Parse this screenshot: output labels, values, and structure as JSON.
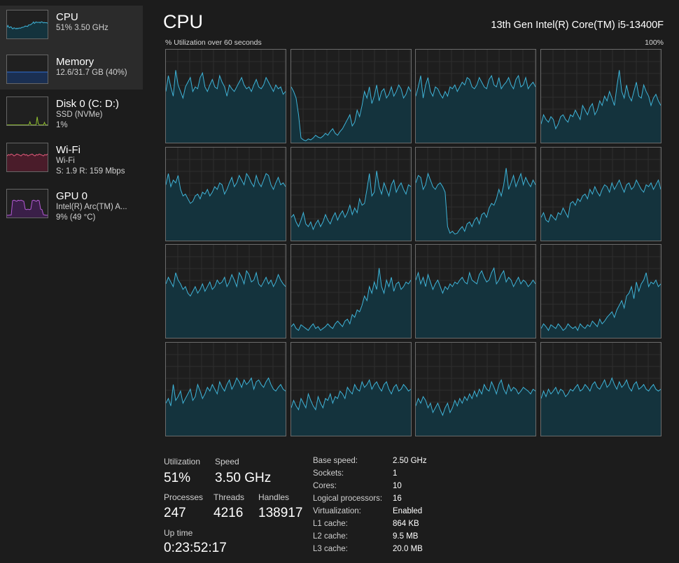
{
  "sidebar": {
    "items": [
      {
        "title": "CPU",
        "sub1": "51%  3.50 GHz",
        "sub2": ""
      },
      {
        "title": "Memory",
        "sub1": "12.6/31.7 GB (40%)",
        "sub2": ""
      },
      {
        "title": "Disk 0 (C: D:)",
        "sub1": "SSD (NVMe)",
        "sub2": "1%"
      },
      {
        "title": "Wi-Fi",
        "sub1": "Wi-Fi",
        "sub2": "S: 1.9  R: 159 Mbps"
      },
      {
        "title": "GPU 0",
        "sub1": "Intel(R) Arc(TM) A...",
        "sub2": "9%  (49 °C)"
      }
    ]
  },
  "header": {
    "title": "CPU",
    "model": "13th Gen Intel(R) Core(TM) i5-13400F",
    "util_label": "% Utilization over 60 seconds",
    "util_max": "100%"
  },
  "cores": [
    [
      55,
      72,
      60,
      50,
      78,
      62,
      55,
      48,
      60,
      65,
      70,
      55,
      60,
      58,
      70,
      75,
      60,
      55,
      62,
      68,
      60,
      58,
      72,
      65,
      60,
      50,
      62,
      58,
      55,
      60,
      65,
      70,
      62,
      58,
      60,
      55,
      62,
      68,
      60,
      58,
      62,
      70,
      65,
      60,
      55,
      62,
      58,
      60,
      52,
      55
    ],
    [
      60,
      55,
      48,
      30,
      5,
      3,
      2,
      4,
      3,
      5,
      8,
      6,
      5,
      7,
      10,
      8,
      12,
      15,
      10,
      8,
      12,
      15,
      20,
      25,
      30,
      18,
      22,
      35,
      28,
      40,
      55,
      48,
      60,
      42,
      50,
      62,
      45,
      55,
      58,
      48,
      52,
      60,
      50,
      55,
      62,
      58,
      48,
      52,
      60,
      55
    ],
    [
      50,
      60,
      72,
      48,
      62,
      70,
      55,
      50,
      60,
      58,
      52,
      48,
      55,
      50,
      60,
      58,
      62,
      55,
      60,
      65,
      62,
      70,
      68,
      60,
      58,
      62,
      70,
      65,
      60,
      58,
      68,
      72,
      62,
      60,
      70,
      58,
      62,
      65,
      70,
      62,
      58,
      68,
      72,
      60,
      62,
      70,
      58,
      62,
      65,
      60
    ],
    [
      20,
      30,
      25,
      22,
      28,
      25,
      15,
      20,
      28,
      30,
      25,
      22,
      30,
      28,
      35,
      30,
      25,
      40,
      35,
      30,
      38,
      42,
      30,
      35,
      45,
      40,
      50,
      45,
      55,
      48,
      40,
      60,
      78,
      55,
      48,
      62,
      50,
      45,
      55,
      65,
      50,
      48,
      62,
      55,
      50,
      40,
      48,
      52,
      45,
      40
    ],
    [
      60,
      72,
      58,
      65,
      62,
      70,
      55,
      48,
      50,
      45,
      40,
      42,
      48,
      50,
      45,
      52,
      50,
      55,
      48,
      52,
      58,
      55,
      62,
      60,
      50,
      55,
      62,
      68,
      58,
      62,
      70,
      65,
      60,
      72,
      68,
      62,
      58,
      70,
      62,
      58,
      65,
      72,
      70,
      60,
      55,
      62,
      68,
      60,
      62,
      58
    ],
    [
      25,
      28,
      20,
      15,
      22,
      30,
      18,
      15,
      20,
      12,
      18,
      22,
      15,
      20,
      28,
      22,
      18,
      25,
      30,
      22,
      28,
      32,
      25,
      30,
      38,
      28,
      35,
      30,
      45,
      38,
      40,
      55,
      72,
      48,
      52,
      75,
      58,
      50,
      62,
      55,
      48,
      60,
      65,
      52,
      58,
      62,
      55,
      50,
      60,
      58
    ],
    [
      62,
      70,
      68,
      55,
      60,
      72,
      65,
      58,
      55,
      60,
      62,
      58,
      52,
      15,
      8,
      10,
      7,
      8,
      12,
      15,
      10,
      18,
      20,
      15,
      22,
      25,
      18,
      28,
      30,
      25,
      35,
      40,
      38,
      45,
      55,
      48,
      60,
      78,
      55,
      62,
      70,
      58,
      65,
      72,
      60,
      68,
      62,
      58,
      65,
      60
    ],
    [
      25,
      30,
      22,
      20,
      28,
      25,
      22,
      30,
      28,
      35,
      30,
      25,
      40,
      42,
      38,
      45,
      42,
      48,
      50,
      45,
      55,
      50,
      58,
      52,
      48,
      55,
      60,
      58,
      52,
      62,
      55,
      60,
      65,
      58,
      52,
      60,
      62,
      55,
      58,
      65,
      60,
      55,
      52,
      60,
      58,
      62,
      55,
      60,
      65,
      55
    ],
    [
      58,
      65,
      60,
      55,
      70,
      62,
      58,
      52,
      55,
      48,
      45,
      50,
      55,
      48,
      52,
      58,
      50,
      55,
      60,
      52,
      55,
      62,
      58,
      60,
      65,
      55,
      60,
      68,
      62,
      55,
      70,
      65,
      58,
      72,
      68,
      60,
      62,
      70,
      58,
      55,
      60,
      65,
      58,
      62,
      55,
      60,
      68,
      62,
      58,
      55
    ],
    [
      12,
      15,
      10,
      8,
      14,
      12,
      10,
      8,
      12,
      15,
      10,
      12,
      8,
      10,
      12,
      15,
      12,
      10,
      15,
      18,
      15,
      12,
      18,
      20,
      15,
      25,
      22,
      30,
      28,
      35,
      45,
      40,
      55,
      48,
      60,
      52,
      75,
      55,
      48,
      62,
      55,
      65,
      50,
      58,
      60,
      52,
      55,
      60,
      58,
      62
    ],
    [
      62,
      70,
      58,
      65,
      55,
      68,
      60,
      52,
      58,
      62,
      55,
      48,
      55,
      52,
      58,
      55,
      60,
      58,
      62,
      65,
      60,
      58,
      70,
      62,
      60,
      58,
      68,
      72,
      65,
      60,
      62,
      70,
      75,
      58,
      62,
      68,
      72,
      60,
      65,
      62,
      55,
      60,
      65,
      58,
      62,
      60,
      55,
      58,
      62,
      58
    ],
    [
      10,
      15,
      12,
      8,
      14,
      12,
      10,
      15,
      12,
      8,
      10,
      15,
      12,
      10,
      12,
      8,
      15,
      12,
      10,
      14,
      12,
      18,
      15,
      12,
      20,
      15,
      18,
      22,
      25,
      28,
      22,
      30,
      35,
      40,
      32,
      45,
      48,
      55,
      42,
      60,
      50,
      58,
      62,
      70,
      55,
      60,
      58,
      62,
      55,
      58
    ],
    [
      35,
      40,
      32,
      55,
      38,
      42,
      48,
      35,
      40,
      45,
      50,
      38,
      42,
      55,
      48,
      40,
      45,
      52,
      48,
      55,
      50,
      45,
      58,
      52,
      48,
      55,
      60,
      50,
      55,
      62,
      58,
      52,
      60,
      55,
      58,
      62,
      50,
      58,
      60,
      55,
      52,
      58,
      62,
      55,
      50,
      48,
      52,
      55,
      50,
      48
    ],
    [
      30,
      38,
      32,
      28,
      40,
      35,
      30,
      45,
      38,
      32,
      28,
      42,
      35,
      30,
      40,
      38,
      45,
      35,
      42,
      40,
      48,
      45,
      40,
      52,
      48,
      45,
      55,
      50,
      48,
      58,
      52,
      55,
      60,
      50,
      55,
      58,
      52,
      48,
      55,
      58,
      50,
      45,
      52,
      55,
      48,
      50,
      55,
      52,
      48,
      50
    ],
    [
      32,
      40,
      35,
      42,
      38,
      30,
      35,
      25,
      30,
      35,
      28,
      22,
      30,
      35,
      25,
      30,
      38,
      32,
      40,
      35,
      42,
      38,
      45,
      40,
      48,
      42,
      50,
      45,
      55,
      50,
      48,
      58,
      52,
      45,
      55,
      60,
      50,
      45,
      55,
      48,
      52,
      50,
      45,
      48,
      52,
      50,
      48,
      45,
      50,
      48
    ],
    [
      40,
      48,
      42,
      50,
      45,
      48,
      52,
      45,
      50,
      48,
      42,
      45,
      50,
      48,
      52,
      55,
      48,
      50,
      55,
      52,
      48,
      55,
      58,
      52,
      50,
      55,
      60,
      52,
      55,
      62,
      55,
      50,
      58,
      52,
      55,
      60,
      52,
      48,
      55,
      58,
      50,
      52,
      55,
      50,
      48,
      52,
      55,
      50,
      48,
      50
    ]
  ],
  "stats": {
    "utilization_label": "Utilization",
    "utilization_value": "51%",
    "speed_label": "Speed",
    "speed_value": "3.50 GHz",
    "processes_label": "Processes",
    "processes_value": "247",
    "threads_label": "Threads",
    "threads_value": "4216",
    "handles_label": "Handles",
    "handles_value": "138917",
    "uptime_label": "Up time",
    "uptime_value": "0:23:52:17"
  },
  "specs": [
    {
      "label": "Base speed:",
      "value": "2.50 GHz"
    },
    {
      "label": "Sockets:",
      "value": "1"
    },
    {
      "label": "Cores:",
      "value": "10"
    },
    {
      "label": "Logical processors:",
      "value": "16"
    },
    {
      "label": "Virtualization:",
      "value": "Enabled"
    },
    {
      "label": "L1 cache:",
      "value": "864 KB"
    },
    {
      "label": "L2 cache:",
      "value": "9.5 MB"
    },
    {
      "label": "L3 cache:",
      "value": "20.0 MB"
    }
  ],
  "colors": {
    "cpu_line": "#3fb4d8",
    "cpu_fill": "#14333d",
    "mem_line": "#2f6fd6",
    "mem_fill": "#1a2f52",
    "disk_line": "#8fbf2f",
    "wifi_line": "#e05a7a",
    "wifi_fill": "#4a1c2a",
    "gpu_line": "#b45ad6",
    "gpu_fill": "#3a1f48",
    "grid": "#2e2e2e"
  }
}
